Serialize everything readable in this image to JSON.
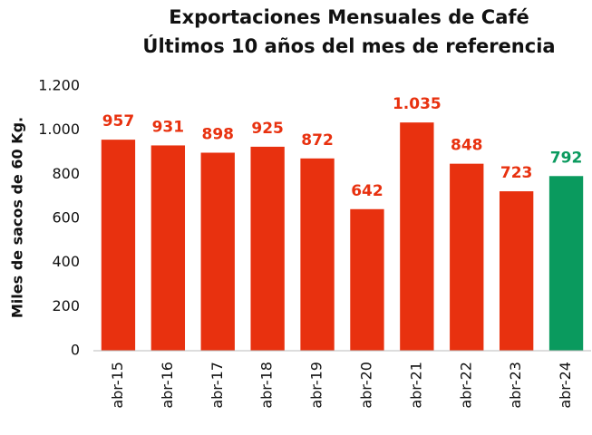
{
  "chart_data": {
    "type": "bar",
    "title": "Exportaciones Mensuales de Café",
    "subtitle": "Últimos 10 años del mes de referencia",
    "y_label": "Miles de sacos de 60 Kg.",
    "categories": [
      "abr-15",
      "abr-16",
      "abr-17",
      "abr-18",
      "abr-19",
      "abr-20",
      "abr-21",
      "abr-22",
      "abr-23",
      "abr-24"
    ],
    "values": [
      957,
      931,
      898,
      925,
      872,
      642,
      1035,
      848,
      723,
      792
    ],
    "value_labels": [
      "957",
      "931",
      "898",
      "925",
      "872",
      "642",
      "1.035",
      "848",
      "723",
      "792"
    ],
    "colors": [
      "#e8310f",
      "#e8310f",
      "#e8310f",
      "#e8310f",
      "#e8310f",
      "#e8310f",
      "#e8310f",
      "#e8310f",
      "#e8310f",
      "#0a9a5e"
    ],
    "ylim": [
      0,
      1200
    ],
    "yticks": [
      0,
      200,
      400,
      600,
      800,
      {
        "value": 1000,
        "label": "1.000"
      },
      {
        "value": 1200,
        "label": "1.200"
      }
    ],
    "grid": false
  }
}
